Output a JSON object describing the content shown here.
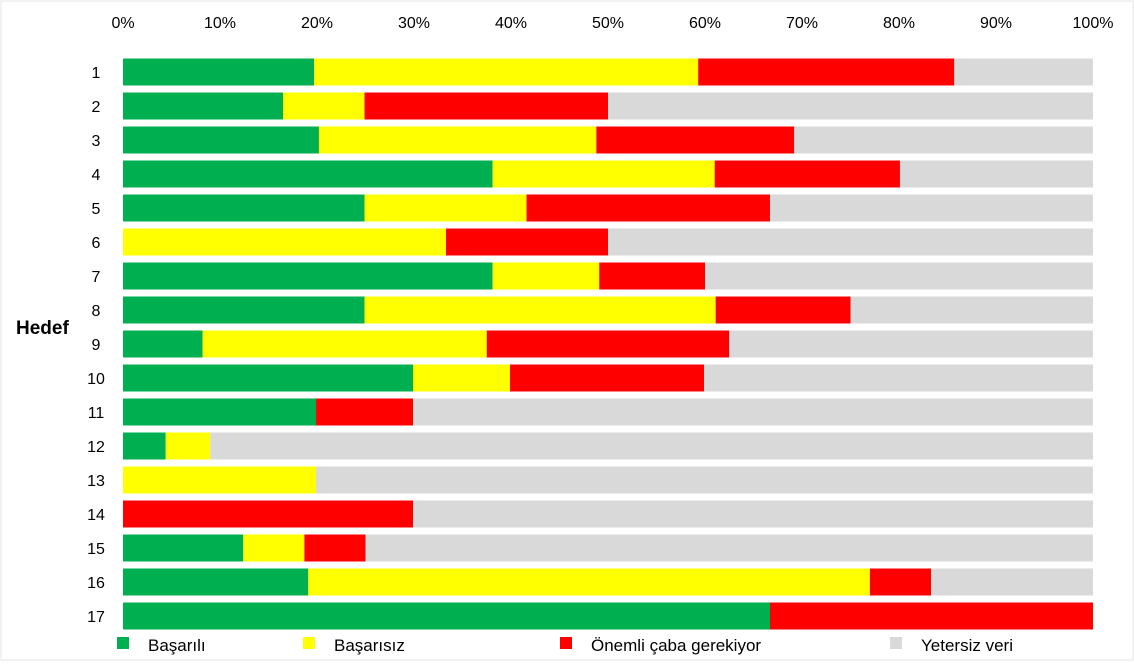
{
  "chart_data": {
    "type": "bar",
    "orientation": "horizontal",
    "stacked": true,
    "ylabel": "Hedef",
    "xlim": [
      0,
      100
    ],
    "x_ticks": [
      "0%",
      "10%",
      "20%",
      "30%",
      "40%",
      "50%",
      "60%",
      "70%",
      "80%",
      "90%",
      "100%"
    ],
    "categories": [
      "1",
      "2",
      "3",
      "4",
      "5",
      "6",
      "7",
      "8",
      "9",
      "10",
      "11",
      "12",
      "13",
      "14",
      "15",
      "16",
      "17"
    ],
    "series": [
      {
        "name": "Başarılı",
        "color": "#00b050",
        "values": [
          19.7,
          16.5,
          20.2,
          38.1,
          24.9,
          0,
          38.1,
          24.9,
          8.2,
          29.9,
          19.9,
          4.4,
          0,
          0,
          12.4,
          19.1,
          66.7
        ]
      },
      {
        "name": "Başarısız",
        "color": "#ffff00",
        "values": [
          39.6,
          8.4,
          28.6,
          22.9,
          16.7,
          33.3,
          11.0,
          36.2,
          29.3,
          10.0,
          0,
          4.6,
          19.9,
          0,
          6.3,
          57.9,
          0
        ]
      },
      {
        "name": "Önemli çaba gerekiyor",
        "color": "#ff0000",
        "values": [
          26.4,
          25.1,
          20.4,
          19.1,
          25.1,
          16.7,
          10.9,
          13.9,
          25.0,
          20.0,
          10.0,
          0,
          0,
          29.9,
          6.3,
          6.3,
          33.3
        ]
      },
      {
        "name": "Yetersiz veri",
        "color": "#d9d9d9",
        "values": [
          14.3,
          50.0,
          30.8,
          19.9,
          33.3,
          50.0,
          40.0,
          25.0,
          37.5,
          40.1,
          70.1,
          91.0,
          80.1,
          70.1,
          75.0,
          16.7,
          0
        ]
      }
    ],
    "legend_position": "bottom",
    "grid": false
  }
}
